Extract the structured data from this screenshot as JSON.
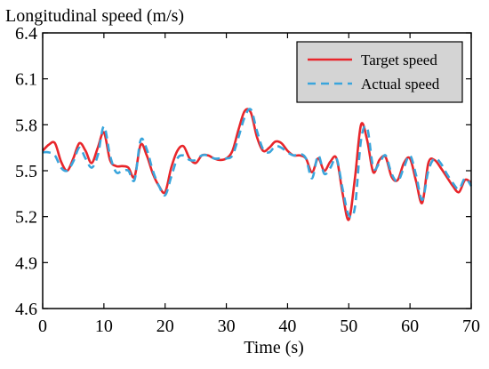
{
  "chart_data": {
    "type": "line",
    "title": "",
    "xlabel": "Time (s)",
    "ylabel": "Longitudinal speed (m/s)",
    "xlim": [
      0,
      70
    ],
    "ylim": [
      4.6,
      6.4
    ],
    "xticks": [
      0,
      10,
      20,
      30,
      40,
      50,
      60,
      70
    ],
    "yticks": [
      4.6,
      4.9,
      5.2,
      5.5,
      5.8,
      6.1,
      6.4
    ],
    "legend_position": "top-right",
    "grid": false,
    "series": [
      {
        "name": "Target speed",
        "color": "#e8262b",
        "style": "solid",
        "points": [
          [
            0,
            5.63
          ],
          [
            1,
            5.67
          ],
          [
            2,
            5.68
          ],
          [
            3,
            5.56
          ],
          [
            4,
            5.5
          ],
          [
            5,
            5.58
          ],
          [
            6,
            5.68
          ],
          [
            7,
            5.63
          ],
          [
            8,
            5.55
          ],
          [
            9,
            5.65
          ],
          [
            10,
            5.75
          ],
          [
            11,
            5.57
          ],
          [
            12,
            5.53
          ],
          [
            13,
            5.53
          ],
          [
            14,
            5.52
          ],
          [
            15,
            5.46
          ],
          [
            16,
            5.67
          ],
          [
            17,
            5.6
          ],
          [
            18,
            5.48
          ],
          [
            19,
            5.4
          ],
          [
            20,
            5.36
          ],
          [
            21,
            5.52
          ],
          [
            22,
            5.63
          ],
          [
            23,
            5.66
          ],
          [
            24,
            5.58
          ],
          [
            25,
            5.55
          ],
          [
            26,
            5.6
          ],
          [
            27,
            5.6
          ],
          [
            28,
            5.58
          ],
          [
            29,
            5.57
          ],
          [
            30,
            5.58
          ],
          [
            31,
            5.63
          ],
          [
            32,
            5.77
          ],
          [
            33,
            5.89
          ],
          [
            34,
            5.88
          ],
          [
            35,
            5.72
          ],
          [
            36,
            5.63
          ],
          [
            37,
            5.65
          ],
          [
            38,
            5.69
          ],
          [
            39,
            5.68
          ],
          [
            40,
            5.63
          ],
          [
            41,
            5.6
          ],
          [
            42,
            5.6
          ],
          [
            43,
            5.58
          ],
          [
            44,
            5.49
          ],
          [
            45,
            5.58
          ],
          [
            46,
            5.5
          ],
          [
            47,
            5.56
          ],
          [
            48,
            5.58
          ],
          [
            49,
            5.35
          ],
          [
            50,
            5.18
          ],
          [
            51,
            5.45
          ],
          [
            52,
            5.8
          ],
          [
            53,
            5.7
          ],
          [
            54,
            5.49
          ],
          [
            55,
            5.57
          ],
          [
            56,
            5.59
          ],
          [
            57,
            5.46
          ],
          [
            58,
            5.44
          ],
          [
            59,
            5.55
          ],
          [
            60,
            5.58
          ],
          [
            61,
            5.43
          ],
          [
            62,
            5.29
          ],
          [
            63,
            5.55
          ],
          [
            64,
            5.57
          ],
          [
            65,
            5.52
          ],
          [
            66,
            5.46
          ],
          [
            67,
            5.4
          ],
          [
            68,
            5.36
          ],
          [
            69,
            5.44
          ],
          [
            70,
            5.42
          ]
        ]
      },
      {
        "name": "Actual speed",
        "color": "#3aa5dc",
        "style": "dashed",
        "points": [
          [
            0,
            5.62
          ],
          [
            1,
            5.62
          ],
          [
            2,
            5.6
          ],
          [
            3,
            5.52
          ],
          [
            4,
            5.5
          ],
          [
            5,
            5.56
          ],
          [
            6,
            5.65
          ],
          [
            7,
            5.58
          ],
          [
            8,
            5.52
          ],
          [
            9,
            5.6
          ],
          [
            10,
            5.79
          ],
          [
            11,
            5.6
          ],
          [
            12,
            5.49
          ],
          [
            13,
            5.5
          ],
          [
            14,
            5.5
          ],
          [
            15,
            5.44
          ],
          [
            16,
            5.7
          ],
          [
            17,
            5.64
          ],
          [
            18,
            5.5
          ],
          [
            19,
            5.4
          ],
          [
            20,
            5.34
          ],
          [
            21,
            5.46
          ],
          [
            22,
            5.58
          ],
          [
            23,
            5.6
          ],
          [
            24,
            5.57
          ],
          [
            25,
            5.57
          ],
          [
            26,
            5.6
          ],
          [
            27,
            5.6
          ],
          [
            28,
            5.58
          ],
          [
            29,
            5.58
          ],
          [
            30,
            5.58
          ],
          [
            31,
            5.6
          ],
          [
            32,
            5.72
          ],
          [
            33,
            5.85
          ],
          [
            34,
            5.9
          ],
          [
            35,
            5.76
          ],
          [
            36,
            5.64
          ],
          [
            37,
            5.62
          ],
          [
            38,
            5.66
          ],
          [
            39,
            5.65
          ],
          [
            40,
            5.62
          ],
          [
            41,
            5.6
          ],
          [
            42,
            5.61
          ],
          [
            43,
            5.58
          ],
          [
            44,
            5.45
          ],
          [
            45,
            5.6
          ],
          [
            46,
            5.48
          ],
          [
            47,
            5.52
          ],
          [
            48,
            5.58
          ],
          [
            49,
            5.38
          ],
          [
            50,
            5.21
          ],
          [
            51,
            5.26
          ],
          [
            52,
            5.7
          ],
          [
            53,
            5.78
          ],
          [
            54,
            5.52
          ],
          [
            55,
            5.55
          ],
          [
            56,
            5.6
          ],
          [
            57,
            5.48
          ],
          [
            58,
            5.43
          ],
          [
            59,
            5.52
          ],
          [
            60,
            5.6
          ],
          [
            61,
            5.47
          ],
          [
            62,
            5.31
          ],
          [
            63,
            5.5
          ],
          [
            64,
            5.58
          ],
          [
            65,
            5.55
          ],
          [
            66,
            5.48
          ],
          [
            67,
            5.42
          ],
          [
            68,
            5.38
          ],
          [
            69,
            5.45
          ],
          [
            70,
            5.4
          ]
        ]
      }
    ]
  },
  "colors": {
    "legend_bg": "#d4d4d4",
    "axis": "#000000"
  }
}
